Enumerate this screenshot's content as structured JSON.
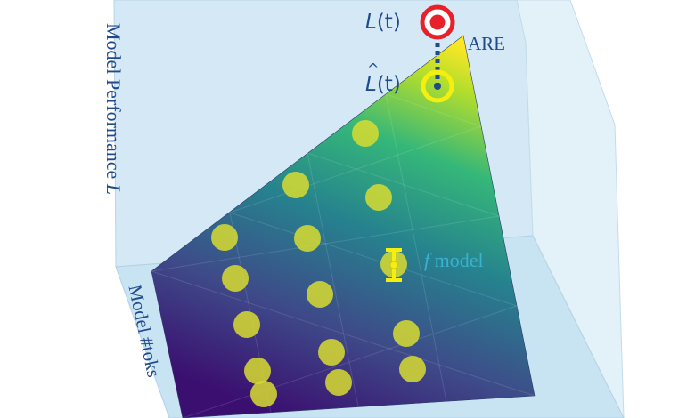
{
  "labels": {
    "y_axis": "Model Performance",
    "y_axis_var": "L",
    "z_axis": "Model #toks",
    "true_label_letter": "L",
    "true_label_arg": "(t)",
    "pred_label_letter": "L",
    "pred_label_arg": "(t)",
    "error_label": "ARE",
    "model_label_var": "f",
    "model_label": " model"
  },
  "colors": {
    "plane": "#cfe6f3",
    "target_red": "#e8202a",
    "pred_yellow": "#f2e818",
    "dots": "#d8dc30",
    "connector": "#1f4a8c",
    "text_blue": "#1f4a8c",
    "model_label": "#3ab1cf"
  },
  "icons": {
    "target": "bullseye-icon",
    "prediction": "ring-icon",
    "error_bar": "error-bar-icon"
  }
}
